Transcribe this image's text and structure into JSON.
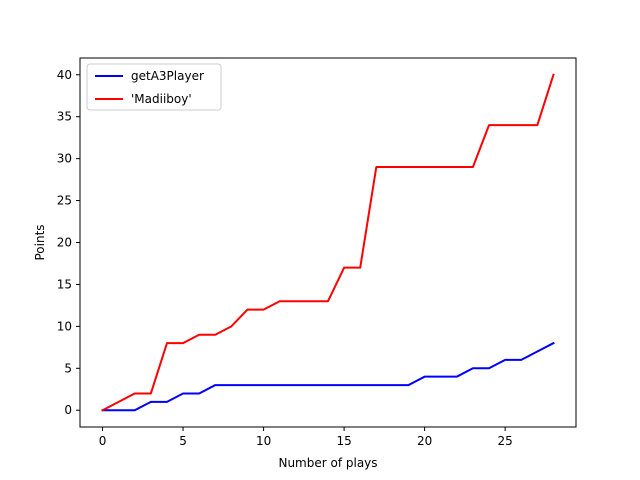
{
  "chart_data": {
    "type": "line",
    "title": "",
    "xlabel": "Number of plays",
    "ylabel": "Points",
    "xlim": [
      -1.4,
      29.4
    ],
    "ylim": [
      -2,
      42
    ],
    "xticks": [
      0,
      5,
      10,
      15,
      20,
      25
    ],
    "yticks": [
      0,
      5,
      10,
      15,
      20,
      25,
      30,
      35,
      40
    ],
    "grid": false,
    "legend": "top-left",
    "x": [
      0,
      1,
      2,
      3,
      4,
      5,
      6,
      7,
      8,
      9,
      10,
      11,
      12,
      13,
      14,
      15,
      16,
      17,
      18,
      19,
      20,
      21,
      22,
      23,
      24,
      25,
      26,
      27,
      28
    ],
    "series": [
      {
        "name": "getA3Player",
        "color": "#0000ff",
        "values": [
          0,
          0,
          0,
          1,
          1,
          2,
          2,
          3,
          3,
          3,
          3,
          3,
          3,
          3,
          3,
          3,
          3,
          3,
          3,
          3,
          4,
          4,
          4,
          5,
          5,
          6,
          6,
          7,
          8
        ]
      },
      {
        "name": "'Madiiboy'",
        "color": "#ff0000",
        "values": [
          0,
          1,
          2,
          2,
          8,
          8,
          9,
          9,
          10,
          12,
          12,
          13,
          13,
          13,
          13,
          17,
          17,
          29,
          29,
          29,
          29,
          29,
          29,
          29,
          34,
          34,
          34,
          34,
          40
        ]
      }
    ]
  }
}
